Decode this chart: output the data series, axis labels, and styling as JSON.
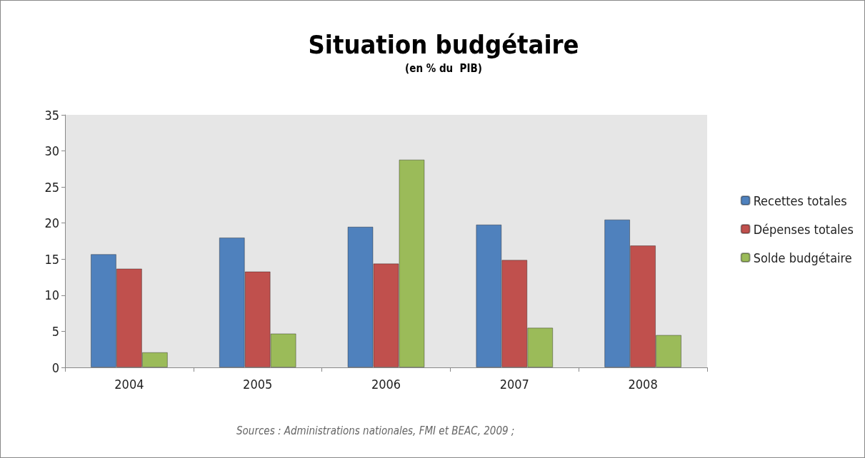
{
  "chart_data": {
    "type": "bar",
    "title": "Situation budgétaire",
    "subtitle": "(en % du  PIB)",
    "categories": [
      "2004",
      "2005",
      "2006",
      "2007",
      "2008"
    ],
    "series": [
      {
        "name": "Recettes totales",
        "color": "#4f81bd",
        "values": [
          15.7,
          18.0,
          19.5,
          19.8,
          20.5
        ]
      },
      {
        "name": "Dépenses totales",
        "color": "#c0504d",
        "values": [
          13.7,
          13.3,
          14.4,
          14.9,
          16.9
        ]
      },
      {
        "name": "Solde budgétaire",
        "color": "#9bbb59",
        "values": [
          2.1,
          4.7,
          28.8,
          5.5,
          4.5
        ]
      }
    ],
    "ylim": [
      0,
      35
    ],
    "yticks": [
      0,
      5,
      10,
      15,
      20,
      25,
      30,
      35
    ],
    "grid": false,
    "legend": "right",
    "annotations": [
      "Sources : Administrations nationales, FMI et BEAC, 2009 ;"
    ]
  }
}
